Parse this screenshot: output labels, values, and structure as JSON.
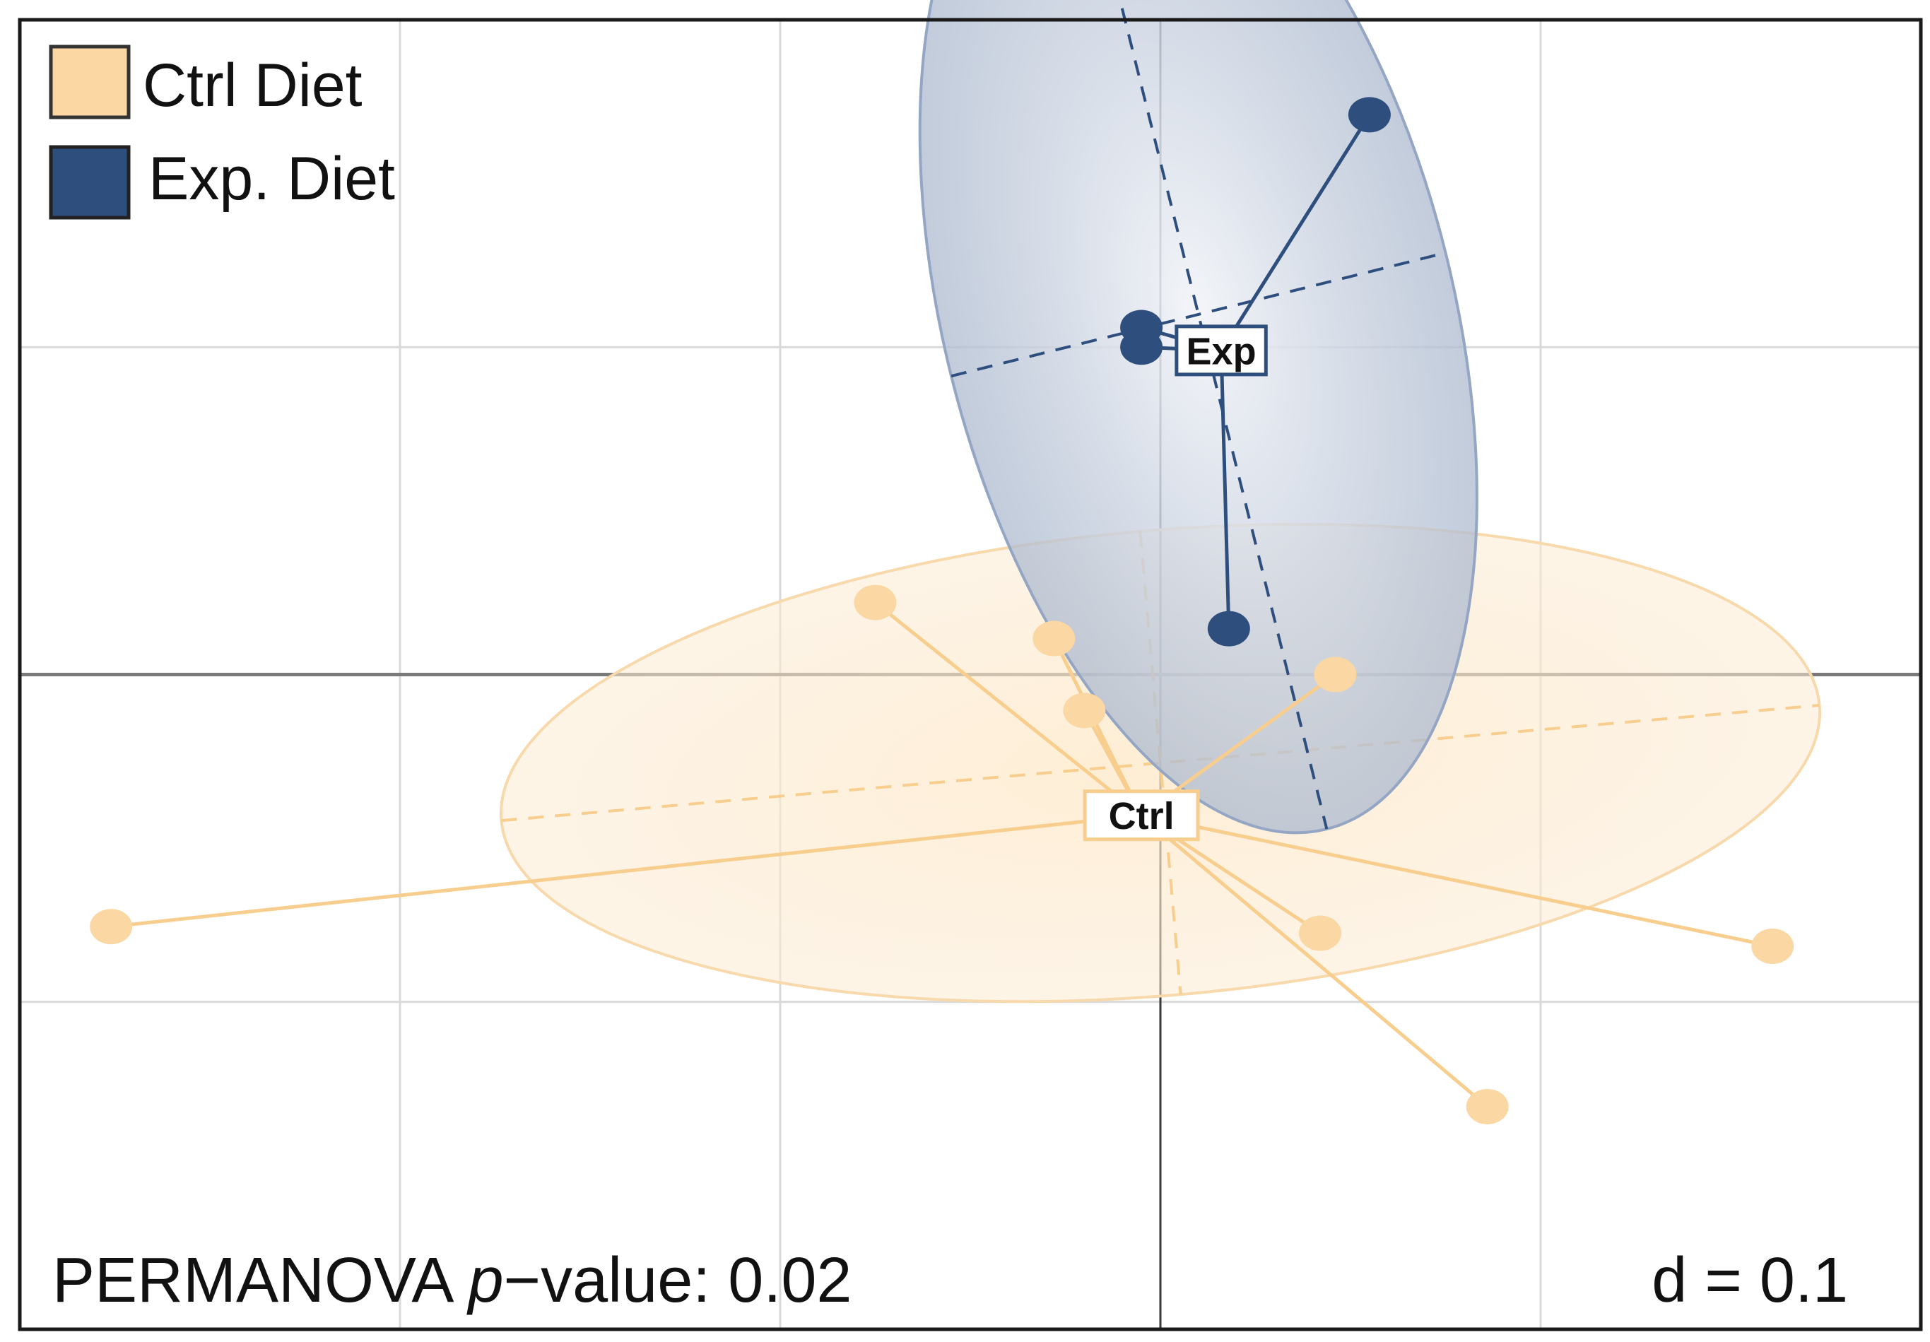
{
  "colors": {
    "ctrl": "#FAD7A3",
    "ctrl_line": "#F8CE8E",
    "exp": "#2E4F7E",
    "exp_ellipse": "#94A6C3",
    "grid": "#D9D9D9",
    "axis": "#7A7A7A",
    "frame": "#1A1A1A"
  },
  "legend": [
    {
      "label": "Ctrl Diet",
      "group": "ctrl"
    },
    {
      "label": "Exp. Diet",
      "group": "exp"
    }
  ],
  "annotations": {
    "pvalue_prefix": "PERMANOVA ",
    "pvalue_italic": "p",
    "pvalue_suffix": "−value: 0.02",
    "scale": "d = 0.1"
  },
  "chart_data": {
    "type": "scatter",
    "description_type": "PCoA ordination with group centroids, spider lines and ellipses",
    "xlim": [
      -0.3,
      0.2
    ],
    "ylim": [
      -0.2,
      0.2
    ],
    "grid_step": 0.1,
    "grid": true,
    "legend_position": "top-left",
    "series": [
      {
        "name": "Ctrl Diet",
        "group": "ctrl",
        "label": "Ctrl",
        "centroid": [
          -0.005,
          -0.043
        ],
        "ellipse": {
          "cx": 0.0,
          "cy": -0.027,
          "rx": 0.174,
          "ry": 0.071,
          "angle_deg": 5
        },
        "points": [
          [
            -0.075,
            0.022
          ],
          [
            -0.028,
            0.011
          ],
          [
            -0.02,
            -0.011
          ],
          [
            0.046,
            0.0
          ],
          [
            -0.276,
            -0.077
          ],
          [
            0.042,
            -0.079
          ],
          [
            0.161,
            -0.083
          ],
          [
            0.086,
            -0.132
          ]
        ]
      },
      {
        "name": "Exp. Diet",
        "group": "exp",
        "label": "Exp",
        "centroid": [
          0.016,
          0.099
        ],
        "ellipse": {
          "cx": 0.01,
          "cy": 0.11,
          "rx": 0.067,
          "ry": 0.162,
          "angle_deg": 14
        },
        "points": [
          [
            0.055,
            0.171
          ],
          [
            -0.005,
            0.106
          ],
          [
            -0.005,
            0.1
          ],
          [
            0.018,
            0.014
          ]
        ]
      }
    ]
  }
}
